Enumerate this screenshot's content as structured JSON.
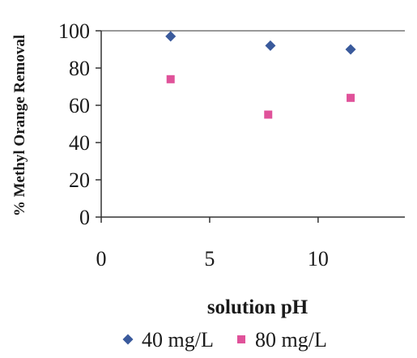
{
  "chart_data": {
    "type": "scatter",
    "title": "",
    "xlabel": "solution pH",
    "ylabel": "% Methyl Orange Removal",
    "xlim": [
      0,
      14
    ],
    "ylim": [
      0,
      100
    ],
    "xticks": [
      0,
      5,
      10
    ],
    "yticks": [
      0,
      20,
      40,
      60,
      80,
      100
    ],
    "xtick_labels": [
      "0",
      "5",
      "10"
    ],
    "ytick_labels": [
      "0",
      "20",
      "40",
      "60",
      "80",
      "100"
    ],
    "grid": false,
    "legend_position": "bottom",
    "series": [
      {
        "name": "40 mg/L",
        "marker": "diamond",
        "color": "#3a5a9c",
        "points": [
          {
            "x": 3.2,
            "y": 97
          },
          {
            "x": 7.8,
            "y": 92
          },
          {
            "x": 11.5,
            "y": 90
          }
        ]
      },
      {
        "name": "80 mg/L",
        "marker": "square",
        "color": "#e0529a",
        "points": [
          {
            "x": 3.2,
            "y": 74
          },
          {
            "x": 7.7,
            "y": 55
          },
          {
            "x": 11.5,
            "y": 64
          }
        ]
      }
    ]
  }
}
